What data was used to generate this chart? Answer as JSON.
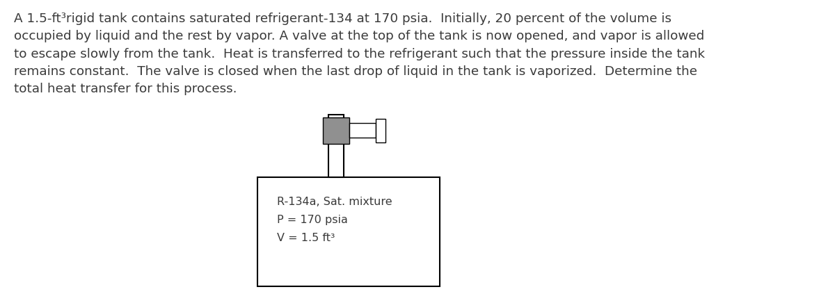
{
  "paragraph_text": "A 1.5-ft³rigid tank contains saturated refrigerant-134 at 170 psia.  Initially, 20 percent of the volume is\noccupied by liquid and the rest by vapor. A valve at the top of the tank is now opened, and vapor is allowed\nto escape slowly from the tank.  Heat is transferred to the refrigerant such that the pressure inside the tank\nremains constant.  The valve is closed when the last drop of liquid in the tank is vaporized.  Determine the\ntotal heat transfer for this process.",
  "label_line1": "R-134a, Sat. mixture",
  "label_line2": "P = 170 psia",
  "label_line3": "V = 1.5 ft³",
  "text_color": "#3a3a3a",
  "background_color": "#ffffff",
  "box_color": "#000000",
  "valve_fill": "#909090",
  "font_size_para": 13.2,
  "font_size_label": 11.5,
  "fig_width": 12.0,
  "fig_height": 4.36
}
